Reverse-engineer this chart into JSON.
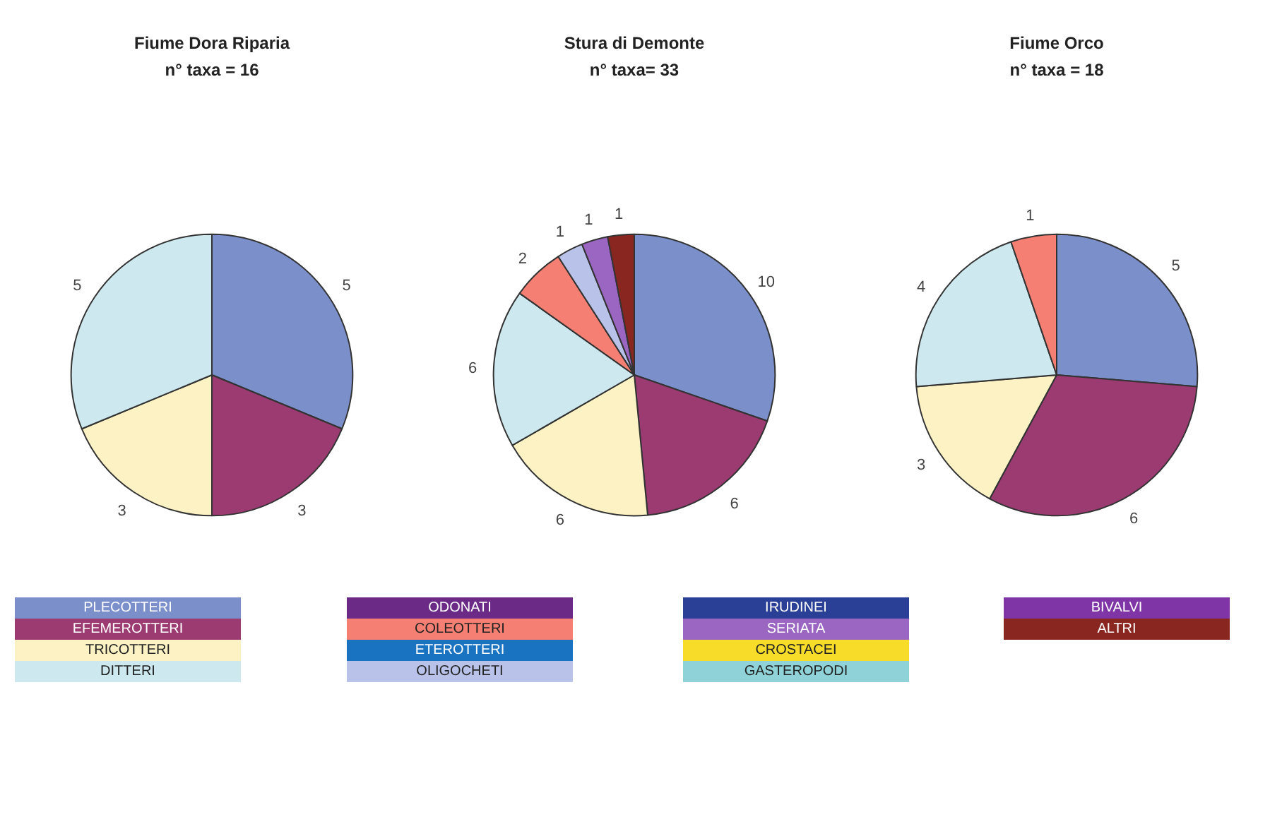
{
  "chart_data": [
    {
      "type": "pie",
      "title": "Fiume Dora Riparia",
      "subtitle": "n° taxa = 16",
      "categories": [
        null,
        null,
        null,
        null
      ],
      "values": [
        5,
        3,
        3,
        5
      ],
      "colors": [
        "#7b8fcb",
        "#9c3a72",
        "#fdf2c4",
        "#cde9ef"
      ],
      "data_labels": true
    },
    {
      "type": "pie",
      "title": "Stura di Demonte",
      "subtitle": "n° taxa= 33",
      "categories": [
        null,
        null,
        null,
        null,
        null,
        null,
        null,
        null
      ],
      "values": [
        10,
        6,
        6,
        6,
        2,
        1,
        1,
        1
      ],
      "colors": [
        "#7b8fcb",
        "#9c3a72",
        "#fdf2c4",
        "#cde9ef",
        "#f47f72",
        "#b9c3ea",
        "#9a66c2",
        "#8a2620"
      ],
      "data_labels": true
    },
    {
      "type": "pie",
      "title": "Fiume Orco",
      "subtitle": "n° taxa = 18",
      "categories": [
        null,
        null,
        null,
        null,
        null
      ],
      "values": [
        5,
        6,
        3,
        4,
        1
      ],
      "colors": [
        "#7b8fcb",
        "#9c3a72",
        "#fdf2c4",
        "#cde9ef",
        "#f47f72"
      ],
      "data_labels": true
    },
    {
      "type": "other",
      "categories": [
        "PLECOTTERI",
        "EFEMEROTTERI",
        "TRICOTTERI",
        "DITTERI",
        "ODONATI",
        "COLEOTTERI",
        "ETEROTTERI",
        "OLIGOCHETI",
        "IRUDINEI",
        "SERIATA",
        "CROSTACEI",
        "GASTEROPODI",
        "BIVALVI",
        "ALTRI"
      ],
      "colors": [
        "#7b8fcb",
        "#9c3a72",
        "#fdf2c4",
        "#cde9ef",
        "#6b2a86",
        "#f47f72",
        "#1a73c0",
        "#b9c3ea",
        "#2a3f96",
        "#9a66c2",
        "#f7dd2a",
        "#8fd3d8",
        "#8035a6",
        "#8a2620"
      ]
    }
  ]
}
